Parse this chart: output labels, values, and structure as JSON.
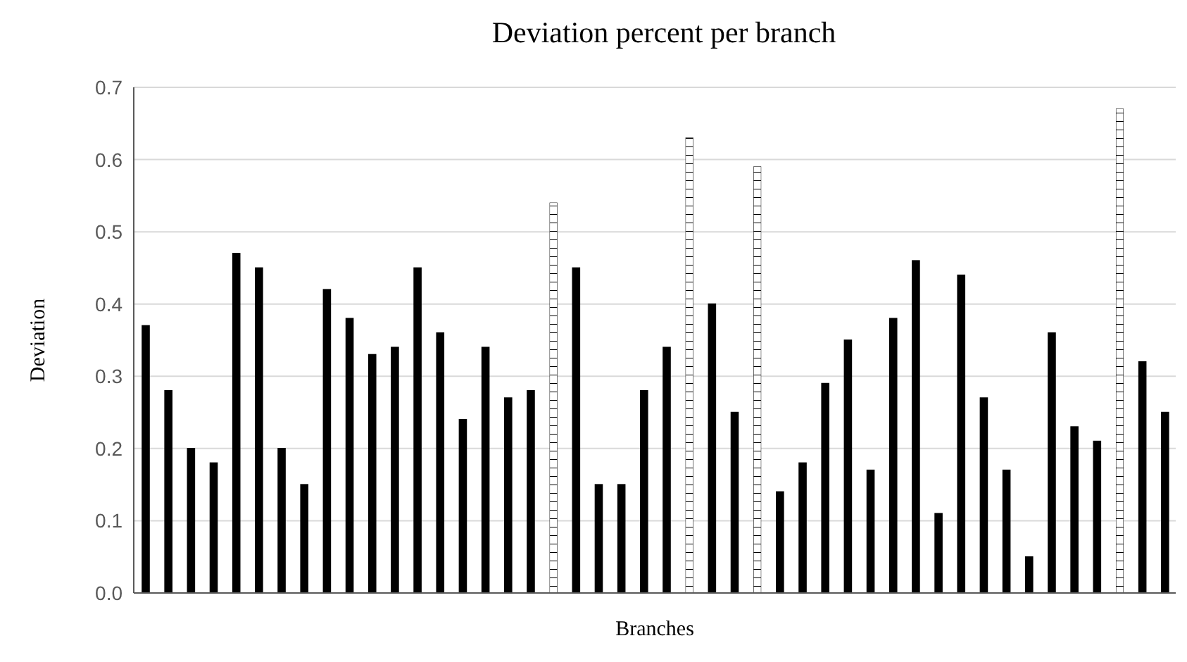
{
  "chart_data": {
    "type": "bar",
    "title": "Deviation percent per branch",
    "xlabel": "Branches",
    "ylabel": "Deviation",
    "categories": [
      null,
      null,
      null,
      null,
      null,
      null,
      null,
      null,
      null,
      null,
      null,
      null,
      null,
      null,
      null,
      null,
      null,
      null,
      null,
      null,
      null,
      null,
      null,
      null,
      null,
      null,
      null,
      null,
      null,
      null,
      null,
      null,
      null,
      null,
      null,
      null,
      null,
      null,
      null,
      null,
      null,
      null,
      null,
      null,
      null,
      null
    ],
    "values": [
      0.37,
      0.28,
      0.2,
      0.18,
      0.47,
      0.45,
      0.2,
      0.15,
      0.42,
      0.38,
      0.33,
      0.34,
      0.45,
      0.36,
      0.24,
      0.34,
      0.27,
      0.28,
      0.54,
      0.45,
      0.15,
      0.15,
      0.28,
      0.34,
      0.63,
      0.4,
      0.25,
      0.59,
      0.14,
      0.18,
      0.29,
      0.35,
      0.17,
      0.38,
      0.46,
      0.11,
      0.44,
      0.27,
      0.17,
      0.05,
      0.36,
      0.23,
      0.21,
      0.67,
      0.32,
      0.25
    ],
    "colors": [
      "#000000",
      "#000000",
      "#000000",
      "#000000",
      "#000000",
      "#000000",
      "#000000",
      "#000000",
      "#000000",
      "#000000",
      "#000000",
      "#000000",
      "#000000",
      "#000000",
      "#000000",
      "#000000",
      "#000000",
      "#000000",
      "#ffffff",
      "#000000",
      "#000000",
      "#000000",
      "#000000",
      "#000000",
      "#ffffff",
      "#000000",
      "#000000",
      "#ffffff",
      "#000000",
      "#000000",
      "#000000",
      "#000000",
      "#000000",
      "#000000",
      "#000000",
      "#000000",
      "#000000",
      "#000000",
      "#000000",
      "#000000",
      "#000000",
      "#000000",
      "#000000",
      "#ffffff",
      "#000000",
      "#000000"
    ],
    "ylim": [
      0,
      0.7
    ],
    "yticks": [
      {
        "value": 0,
        "label": "0.0"
      },
      {
        "value": 0.1,
        "label": "0.1"
      },
      {
        "value": 0.2,
        "label": "0.2"
      },
      {
        "value": 0.3,
        "label": "0.3"
      },
      {
        "value": 0.4,
        "label": "0.4"
      },
      {
        "value": 0.5,
        "label": "0.5"
      },
      {
        "value": 0.6,
        "label": "0.6"
      },
      {
        "value": 0.7,
        "label": "0.7"
      }
    ],
    "grid": "y",
    "tick_labels": "y",
    "legend": false
  }
}
